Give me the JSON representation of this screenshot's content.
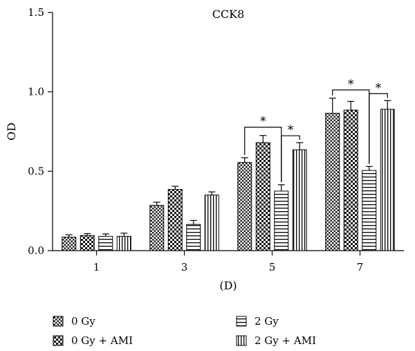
{
  "chart_data": {
    "type": "bar",
    "title": "CCK8",
    "xlabel": "(D)",
    "ylabel": "OD",
    "ylim": [
      0,
      1.5
    ],
    "yticks": [
      "0.0",
      "0.5",
      "1.0",
      "1.5"
    ],
    "categories": [
      "1",
      "3",
      "5",
      "7"
    ],
    "series": [
      {
        "name": "0 Gy",
        "pattern": "dense-check",
        "values": [
          0.085,
          0.285,
          0.555,
          0.865
        ],
        "errors": [
          0.015,
          0.02,
          0.03,
          0.095
        ]
      },
      {
        "name": "0 Gy + AMI",
        "pattern": "check",
        "values": [
          0.095,
          0.385,
          0.68,
          0.885
        ],
        "errors": [
          0.012,
          0.02,
          0.045,
          0.055
        ]
      },
      {
        "name": "2 Gy",
        "pattern": "horizontal-stripes",
        "values": [
          0.09,
          0.165,
          0.375,
          0.505
        ],
        "errors": [
          0.015,
          0.025,
          0.04,
          0.025
        ]
      },
      {
        "name": "2 Gy + AMI",
        "pattern": "vertical-stripes",
        "values": [
          0.09,
          0.35,
          0.635,
          0.89
        ],
        "errors": [
          0.02,
          0.02,
          0.045,
          0.055
        ]
      }
    ],
    "significance": [
      {
        "category": "5",
        "from_series": 0,
        "to_series": 2,
        "label": "*",
        "level": "high"
      },
      {
        "category": "5",
        "from_series": 2,
        "to_series": 3,
        "label": "*",
        "level": "low"
      },
      {
        "category": "7",
        "from_series": 0,
        "to_series": 2,
        "label": "*",
        "level": "high"
      },
      {
        "category": "7",
        "from_series": 2,
        "to_series": 3,
        "label": "*",
        "level": "low"
      }
    ],
    "legend_placement": "bottom",
    "grid": false
  }
}
